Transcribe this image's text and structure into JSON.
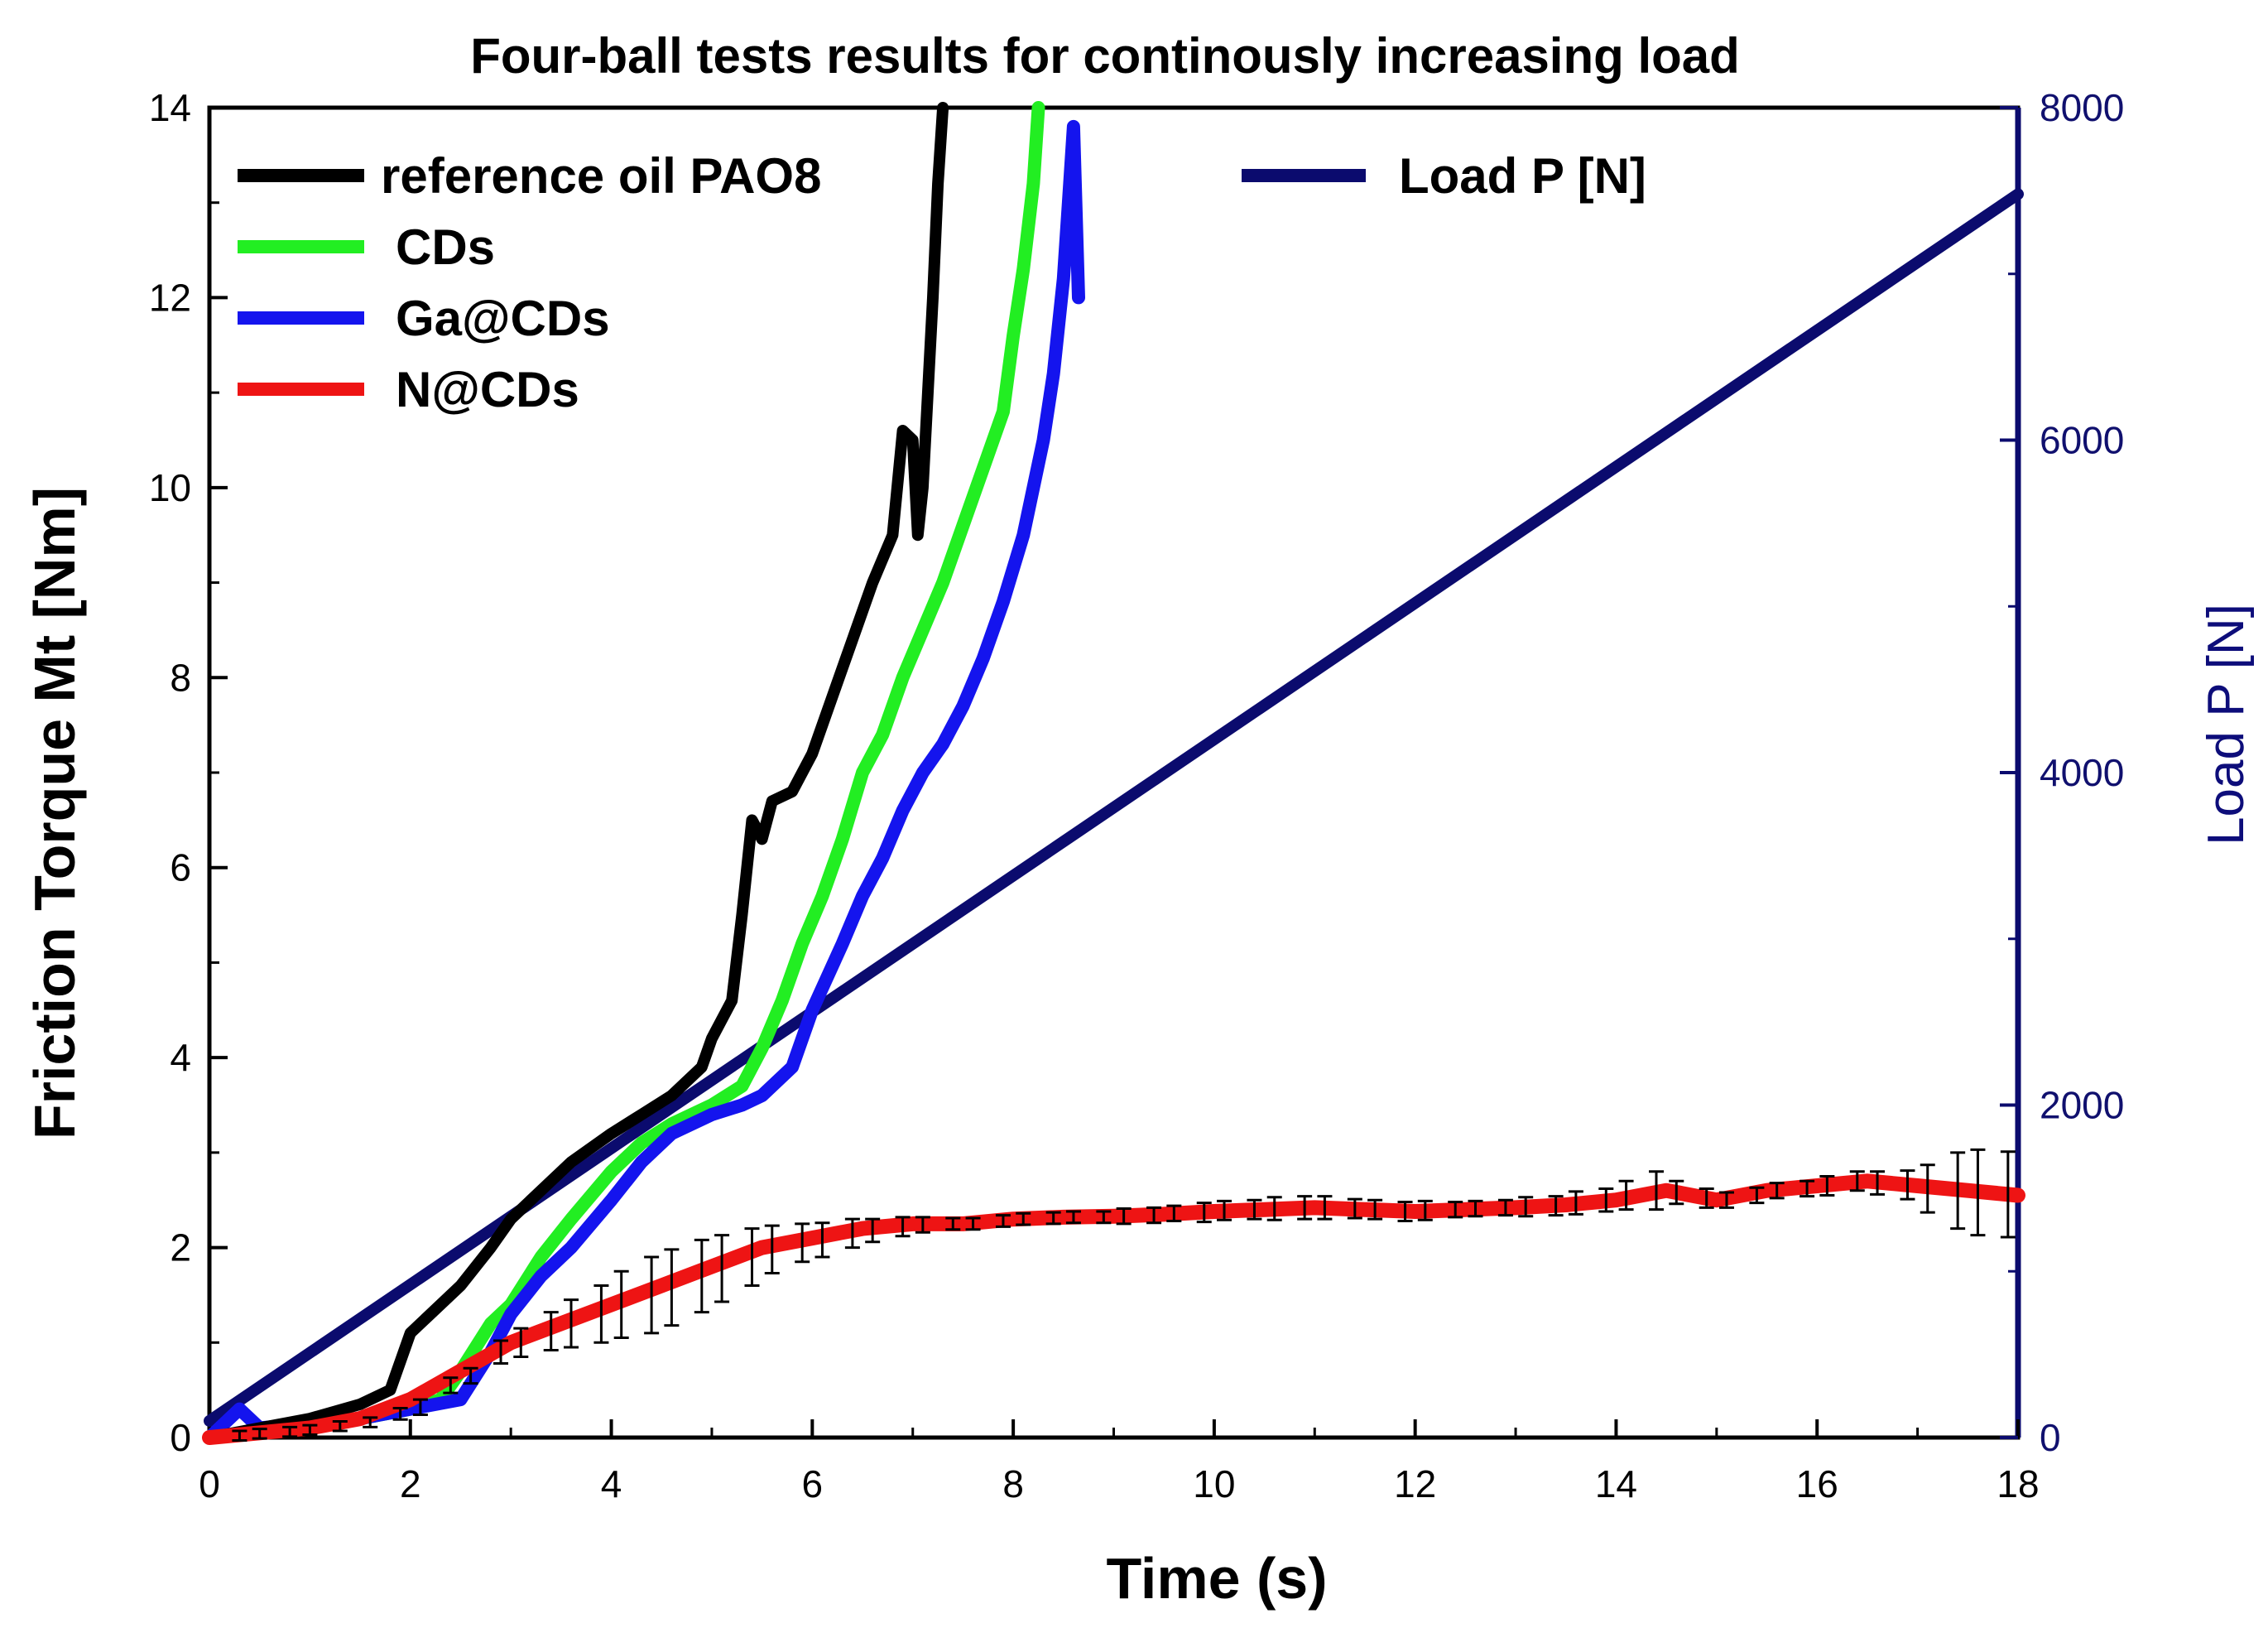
{
  "chart_data": {
    "type": "line",
    "title": "Four-ball tests results for continously increasing load",
    "xlabel": "Time (s)",
    "ylabel": "Friction Torque Mt [Nm]",
    "y2label": "Load P [N]",
    "xlim": [
      0,
      18
    ],
    "ylim": [
      0,
      14
    ],
    "y2lim": [
      0,
      8000
    ],
    "xticks": [
      "0",
      "2",
      "4",
      "6",
      "8",
      "10",
      "12",
      "14",
      "16",
      "18"
    ],
    "yticks": [
      "0",
      "2",
      "4",
      "6",
      "8",
      "10",
      "12",
      "14"
    ],
    "y2ticks": [
      "0",
      "2000",
      "4000",
      "6000",
      "8000"
    ],
    "legend_position": "top-left",
    "series": [
      {
        "name": "reference oil PAO8",
        "color": "#000000",
        "axis": "left",
        "x": [
          0,
          0.5,
          1.0,
          1.5,
          1.8,
          2.0,
          2.2,
          2.5,
          2.8,
          3.0,
          3.3,
          3.6,
          4.0,
          4.3,
          4.6,
          4.9,
          5.0,
          5.2,
          5.3,
          5.4,
          5.5,
          5.6,
          5.8,
          6.0,
          6.2,
          6.4,
          6.6,
          6.8,
          6.9,
          7.0,
          7.05,
          7.1,
          7.2,
          7.25,
          7.3
        ],
        "y": [
          0.0,
          0.1,
          0.2,
          0.35,
          0.5,
          1.1,
          1.3,
          1.6,
          2.0,
          2.3,
          2.6,
          2.9,
          3.2,
          3.4,
          3.6,
          3.9,
          4.2,
          4.6,
          5.5,
          6.5,
          6.3,
          6.7,
          6.8,
          7.2,
          7.8,
          8.4,
          9.0,
          9.5,
          10.6,
          10.5,
          9.5,
          10.0,
          12.0,
          13.2,
          14.0
        ]
      },
      {
        "name": "CDs",
        "color": "#22ee22",
        "axis": "left",
        "x": [
          0,
          0.5,
          1.0,
          1.5,
          2.0,
          2.3,
          2.5,
          2.8,
          3.0,
          3.3,
          3.6,
          4.0,
          4.3,
          4.6,
          5.0,
          5.3,
          5.5,
          5.7,
          5.9,
          6.1,
          6.3,
          6.5,
          6.7,
          6.9,
          7.1,
          7.3,
          7.5,
          7.7,
          7.9,
          8.0,
          8.1,
          8.2,
          8.25
        ],
        "y": [
          0.0,
          0.05,
          0.1,
          0.2,
          0.3,
          0.4,
          0.7,
          1.2,
          1.4,
          1.9,
          2.3,
          2.8,
          3.1,
          3.3,
          3.5,
          3.7,
          4.1,
          4.6,
          5.2,
          5.7,
          6.3,
          7.0,
          7.4,
          8.0,
          8.5,
          9.0,
          9.6,
          10.2,
          10.8,
          11.6,
          12.3,
          13.2,
          14.0
        ]
      },
      {
        "name": "Ga@CDs",
        "color": "#1414ee",
        "axis": "left",
        "x": [
          0,
          0.3,
          0.5,
          1.0,
          1.5,
          2.0,
          2.5,
          2.8,
          3.0,
          3.3,
          3.6,
          4.0,
          4.3,
          4.6,
          5.0,
          5.3,
          5.5,
          5.8,
          6.0,
          6.3,
          6.5,
          6.7,
          6.9,
          7.1,
          7.3,
          7.5,
          7.7,
          7.9,
          8.1,
          8.3,
          8.4,
          8.5,
          8.55,
          8.6,
          8.65
        ],
        "y": [
          0.0,
          0.3,
          0.1,
          0.15,
          0.2,
          0.3,
          0.4,
          0.9,
          1.3,
          1.7,
          2.0,
          2.5,
          2.9,
          3.2,
          3.4,
          3.5,
          3.6,
          3.9,
          4.5,
          5.2,
          5.7,
          6.1,
          6.6,
          7.0,
          7.3,
          7.7,
          8.2,
          8.8,
          9.5,
          10.5,
          11.2,
          12.2,
          13.0,
          13.8,
          12.0
        ]
      },
      {
        "name": "N@CDs",
        "color": "#ee1414",
        "axis": "left",
        "x": [
          0,
          0.5,
          1.0,
          1.5,
          2.0,
          2.5,
          3.0,
          3.5,
          4.0,
          4.5,
          5.0,
          5.5,
          6.0,
          6.5,
          7.0,
          7.5,
          8.0,
          8.5,
          9.0,
          9.5,
          10.0,
          10.5,
          11.0,
          11.5,
          12.0,
          12.5,
          13.0,
          13.5,
          14.0,
          14.5,
          15.0,
          15.5,
          16.0,
          16.5,
          17.0,
          17.5,
          18.0
        ],
        "y": [
          0.0,
          0.05,
          0.1,
          0.2,
          0.4,
          0.7,
          1.0,
          1.2,
          1.4,
          1.6,
          1.8,
          2.0,
          2.1,
          2.2,
          2.25,
          2.25,
          2.3,
          2.32,
          2.33,
          2.35,
          2.38,
          2.4,
          2.42,
          2.4,
          2.38,
          2.4,
          2.42,
          2.45,
          2.5,
          2.6,
          2.5,
          2.6,
          2.65,
          2.7,
          2.65,
          2.6,
          2.55
        ]
      },
      {
        "name": "Load P [N]",
        "color": "#0b0b6e",
        "axis": "right",
        "x": [
          0,
          18
        ],
        "y": [
          100,
          7480
        ]
      }
    ],
    "error_bars": {
      "series": "N@CDs",
      "x": [
        0.3,
        0.5,
        0.8,
        1.0,
        1.3,
        1.6,
        1.9,
        2.1,
        2.4,
        2.6,
        2.9,
        3.1,
        3.4,
        3.6,
        3.9,
        4.1,
        4.4,
        4.6,
        4.9,
        5.1,
        5.4,
        5.6,
        5.9,
        6.1,
        6.4,
        6.6,
        6.9,
        7.1,
        7.4,
        7.6,
        7.9,
        8.1,
        8.4,
        8.6,
        8.9,
        9.1,
        9.4,
        9.6,
        9.9,
        10.1,
        10.4,
        10.6,
        10.9,
        11.1,
        11.4,
        11.6,
        11.9,
        12.1,
        12.4,
        12.6,
        12.9,
        13.1,
        13.4,
        13.6,
        13.9,
        14.1,
        14.4,
        14.6,
        14.9,
        15.1,
        15.4,
        15.6,
        15.9,
        16.1,
        16.4,
        16.6,
        16.9,
        17.1,
        17.4,
        17.6,
        17.9
      ],
      "y": [
        0.02,
        0.04,
        0.06,
        0.08,
        0.12,
        0.16,
        0.25,
        0.32,
        0.55,
        0.65,
        0.9,
        1.0,
        1.12,
        1.2,
        1.3,
        1.4,
        1.5,
        1.58,
        1.7,
        1.78,
        1.9,
        1.98,
        2.05,
        2.08,
        2.15,
        2.18,
        2.22,
        2.24,
        2.25,
        2.25,
        2.28,
        2.3,
        2.31,
        2.32,
        2.32,
        2.33,
        2.34,
        2.36,
        2.37,
        2.39,
        2.4,
        2.41,
        2.42,
        2.42,
        2.41,
        2.4,
        2.38,
        2.39,
        2.4,
        2.41,
        2.42,
        2.43,
        2.44,
        2.47,
        2.5,
        2.55,
        2.6,
        2.58,
        2.52,
        2.5,
        2.55,
        2.6,
        2.62,
        2.65,
        2.7,
        2.68,
        2.66,
        2.62,
        2.6,
        2.58,
        2.56
      ],
      "err": [
        0.05,
        0.05,
        0.05,
        0.05,
        0.05,
        0.05,
        0.06,
        0.08,
        0.08,
        0.08,
        0.12,
        0.15,
        0.2,
        0.25,
        0.3,
        0.35,
        0.4,
        0.4,
        0.38,
        0.35,
        0.3,
        0.25,
        0.2,
        0.18,
        0.15,
        0.12,
        0.1,
        0.08,
        0.06,
        0.06,
        0.06,
        0.06,
        0.06,
        0.06,
        0.06,
        0.08,
        0.08,
        0.08,
        0.1,
        0.1,
        0.1,
        0.12,
        0.12,
        0.12,
        0.1,
        0.1,
        0.1,
        0.1,
        0.08,
        0.08,
        0.08,
        0.1,
        0.1,
        0.12,
        0.12,
        0.15,
        0.2,
        0.12,
        0.1,
        0.08,
        0.08,
        0.08,
        0.08,
        0.1,
        0.1,
        0.12,
        0.15,
        0.25,
        0.4,
        0.45,
        0.45
      ]
    }
  }
}
